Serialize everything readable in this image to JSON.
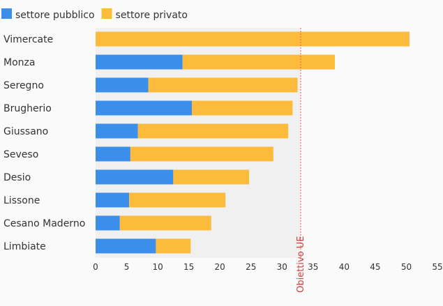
{
  "chart_data": {
    "type": "bar",
    "orientation": "horizontal",
    "stacked": true,
    "categories": [
      "Vimercate",
      "Monza",
      "Seregno",
      "Brugherio",
      "Giussano",
      "Seveso",
      "Desio",
      "Lissone",
      "Cesano Maderno",
      "Limbiate"
    ],
    "series": [
      {
        "name": "settore pubblico",
        "color": "#3b8eea",
        "values": [
          0,
          14.0,
          8.5,
          15.5,
          6.8,
          5.6,
          12.5,
          5.4,
          3.9,
          9.7
        ]
      },
      {
        "name": "settore privato",
        "color": "#fdbb3c",
        "values": [
          50.5,
          24.5,
          24.0,
          16.2,
          24.2,
          23.0,
          12.2,
          15.5,
          14.7,
          5.6
        ]
      }
    ],
    "xlim": [
      0,
      55
    ],
    "xticks": [
      0,
      5,
      10,
      15,
      20,
      25,
      30,
      35,
      40,
      45,
      50,
      55
    ],
    "reference_line": {
      "value": 33,
      "label": "Obiettivo UE",
      "color": "#e05a5a"
    },
    "legend_position": "top-left",
    "grid": false,
    "title": "",
    "xlabel": "",
    "ylabel": ""
  }
}
